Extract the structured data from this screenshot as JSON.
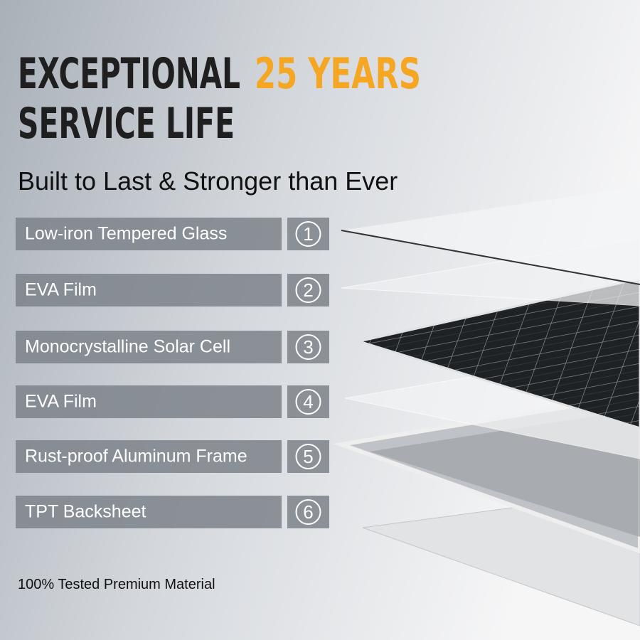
{
  "header": {
    "title_part1": "EXCEPTIONAL",
    "title_highlight": "25 YEARS",
    "title_line2": "SERVICE LIFE",
    "subtitle": "Built to Last & Stronger than Ever"
  },
  "layers": [
    {
      "number": "1",
      "label": "Low-iron Tempered Glass"
    },
    {
      "number": "2",
      "label": "EVA Film"
    },
    {
      "number": "3",
      "label": "Monocrystalline Solar Cell"
    },
    {
      "number": "4",
      "label": "EVA Film"
    },
    {
      "number": "5",
      "label": "Rust-proof Aluminum Frame"
    },
    {
      "number": "6",
      "label": "TPT Backsheet"
    }
  ],
  "footer": {
    "note": "100% Tested Premium Material"
  }
}
